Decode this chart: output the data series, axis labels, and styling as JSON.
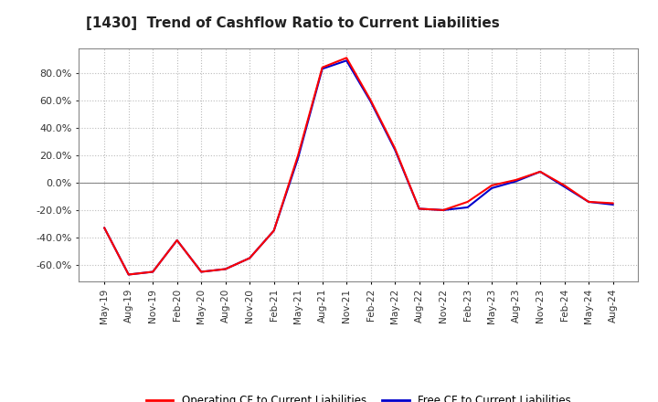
{
  "title": "[1430]  Trend of Cashflow Ratio to Current Liabilities",
  "legend_operating": "Operating CF to Current Liabilities",
  "legend_free": "Free CF to Current Liabilities",
  "operating_color": "#ff0000",
  "free_color": "#0000cc",
  "background_color": "#ffffff",
  "plot_bg_color": "#ffffff",
  "grid_color": "#bbbbbb",
  "ylim": [
    -0.72,
    0.98
  ],
  "yticks": [
    -0.6,
    -0.4,
    -0.2,
    0.0,
    0.2,
    0.4,
    0.6,
    0.8
  ],
  "x_labels": [
    "May-19",
    "Aug-19",
    "Nov-19",
    "Feb-20",
    "May-20",
    "Aug-20",
    "Nov-20",
    "Feb-21",
    "May-21",
    "Aug-21",
    "Nov-21",
    "Feb-22",
    "May-22",
    "Aug-22",
    "Nov-22",
    "Feb-23",
    "May-23",
    "Aug-23",
    "Nov-23",
    "Feb-24",
    "May-24",
    "Aug-24"
  ],
  "operating_cf": [
    -0.33,
    -0.67,
    -0.65,
    -0.42,
    -0.65,
    -0.63,
    -0.55,
    -0.35,
    0.2,
    0.84,
    0.91,
    0.6,
    0.25,
    -0.19,
    -0.2,
    -0.14,
    -0.02,
    0.02,
    0.08,
    -0.02,
    -0.14,
    -0.15
  ],
  "free_cf": [
    -0.33,
    -0.67,
    -0.65,
    -0.42,
    -0.65,
    -0.63,
    -0.55,
    -0.35,
    0.18,
    0.83,
    0.89,
    0.59,
    0.24,
    -0.19,
    -0.2,
    -0.18,
    -0.04,
    0.01,
    0.08,
    -0.03,
    -0.14,
    -0.16
  ]
}
